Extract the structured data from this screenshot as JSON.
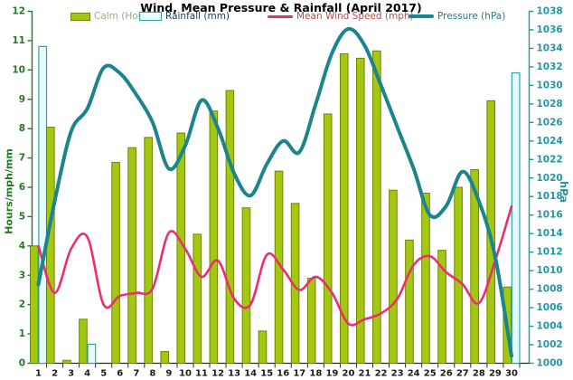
{
  "title": "Wind, Mean Pressure & Rainfall (April 2017)",
  "legend": [
    {
      "label": "Calm (Hours)",
      "swatch": "bar-swatch-green"
    },
    {
      "label": "Rainfall (mm)",
      "swatch": "bar-swatch-cyan"
    },
    {
      "label": "Mean Wind Speed (mph)",
      "swatch": "line-swatch-pink"
    },
    {
      "label": "Pressure (hPa)",
      "swatch": "line-swatch-teal"
    }
  ],
  "colors": {
    "title_text": "#17375D",
    "calm_bar_fill": "#A2C811",
    "calm_bar_border": "#748200",
    "calm_legend_text": "#A9A582",
    "rain_bar_fill": "#E8FBFC",
    "rain_bar_border": "#31A2AC",
    "rain_legend_text": "#17375D",
    "wind_line": "#EE2D6F",
    "wind_legend_text": "#BE4B48",
    "pressure_line": "#1A858E",
    "pressure_legend_text": "#17838C",
    "left_axis": "#257925",
    "right_axis": "#2496A6",
    "x_axis": "#2B2B2B"
  },
  "chart_data": {
    "type": "combo-bar-line-dual-axis",
    "title": "Wind, Mean Pressure & Rainfall (April 2017)",
    "x": [
      1,
      2,
      3,
      4,
      5,
      6,
      7,
      8,
      9,
      10,
      11,
      12,
      13,
      14,
      15,
      16,
      17,
      18,
      19,
      20,
      21,
      22,
      23,
      24,
      25,
      26,
      27,
      28,
      29,
      30
    ],
    "left_axis": {
      "label": "Hours/mph/mm",
      "min": 0,
      "max": 12,
      "step": 1
    },
    "right_axis": {
      "label": "hPa",
      "min": 1000,
      "max": 1038,
      "step": 2
    },
    "grid": false,
    "legend_position": "top",
    "series": [
      {
        "name": "Calm (Hours)",
        "type": "bar",
        "axis": "left",
        "values": [
          4.0,
          8.05,
          0.1,
          1.5,
          0,
          6.85,
          7.35,
          7.7,
          0.4,
          7.85,
          4.4,
          8.6,
          9.3,
          5.3,
          1.1,
          6.55,
          5.45,
          2.9,
          8.5,
          10.55,
          10.4,
          10.65,
          5.9,
          4.2,
          5.8,
          3.85,
          6.0,
          6.6,
          8.95,
          2.6
        ]
      },
      {
        "name": "Rainfall (mm)",
        "type": "bar",
        "axis": "left",
        "values": [
          10.8,
          0,
          0,
          0.65,
          0,
          0,
          0,
          0,
          0,
          0,
          0,
          0,
          0,
          0,
          0,
          0,
          0,
          0,
          0,
          0,
          0,
          0,
          0,
          0,
          0,
          0,
          0,
          0,
          0,
          9.9
        ]
      },
      {
        "name": "Mean Wind Speed (mph)",
        "type": "line",
        "axis": "left",
        "values": [
          4.0,
          2.4,
          3.9,
          4.3,
          2.0,
          2.3,
          2.4,
          2.55,
          4.45,
          3.9,
          2.95,
          3.5,
          2.2,
          2.0,
          3.7,
          3.2,
          2.5,
          2.95,
          2.4,
          1.35,
          1.5,
          1.7,
          2.2,
          3.35,
          3.65,
          3.1,
          2.7,
          2.05,
          3.5,
          5.35
        ]
      },
      {
        "name": "Pressure (hPa)",
        "type": "line",
        "axis": "right",
        "values": [
          1008.5,
          1017.5,
          1025,
          1027.5,
          1031.9,
          1031.3,
          1029,
          1026,
          1021,
          1023.5,
          1028.4,
          1025.4,
          1020.5,
          1018.1,
          1021.5,
          1024,
          1022.8,
          1028,
          1033.5,
          1036.1,
          1034.3,
          1030,
          1025.5,
          1021,
          1016,
          1017,
          1020.7,
          1017.5,
          1011.5,
          1000.8
        ]
      }
    ]
  }
}
